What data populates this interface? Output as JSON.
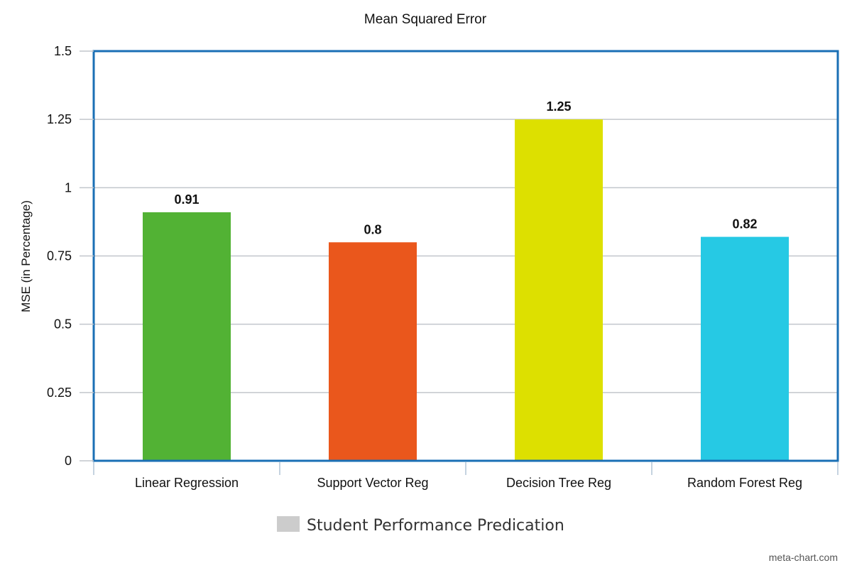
{
  "chart_data": {
    "type": "bar",
    "title": "Mean Squared Error",
    "xlabel": "",
    "ylabel": "MSE (in Percentage)",
    "ylim": [
      0,
      1.5
    ],
    "yticks": [
      "0",
      "0.25",
      "0.5",
      "0.75",
      "1",
      "1.25",
      "1.5"
    ],
    "ytick_values": [
      0,
      0.25,
      0.5,
      0.75,
      1,
      1.25,
      1.5
    ],
    "categories": [
      "Linear Regression",
      "Support Vector Reg",
      "Decision Tree Reg",
      "Random Forest Reg"
    ],
    "values": [
      0.91,
      0.8,
      1.25,
      0.82
    ],
    "value_labels": [
      "0.91",
      "0.8",
      "1.25",
      "0.82"
    ],
    "bar_colors": [
      "#52b234",
      "#ea571c",
      "#dde000",
      "#26c9e4"
    ],
    "series": [
      {
        "name": "Student Performance Predication",
        "values": [
          0.91,
          0.8,
          1.25,
          0.82
        ]
      }
    ],
    "legend": {
      "position": "bottom",
      "swatch_color": "#cccccc"
    },
    "grid": true,
    "frame_color": "#1a6fb5",
    "gridline_color": "#c2c6cc"
  },
  "credit": "meta-chart.com"
}
